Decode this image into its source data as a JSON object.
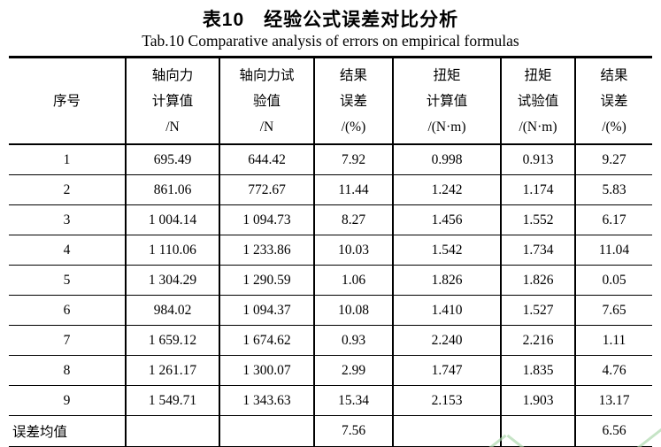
{
  "titles": {
    "cn": "表10　经验公式误差对比分析",
    "en": "Tab.10 Comparative analysis of errors on empirical formulas"
  },
  "table": {
    "headers": [
      {
        "lines": [
          "序号"
        ]
      },
      {
        "lines": [
          "轴向力",
          "计算值",
          "/N"
        ]
      },
      {
        "lines": [
          "轴向力试",
          "验值",
          "/N"
        ]
      },
      {
        "lines": [
          "结果",
          "误差",
          "/(%)"
        ]
      },
      {
        "lines": [
          "扭矩",
          "计算值",
          "/(N·m)"
        ]
      },
      {
        "lines": [
          "扭矩",
          "试验值",
          "/(N·m)"
        ]
      },
      {
        "lines": [
          "结果",
          "误差",
          "/(%)"
        ]
      }
    ],
    "rows": [
      [
        "1",
        "695.49",
        "644.42",
        "7.92",
        "0.998",
        "0.913",
        "9.27"
      ],
      [
        "2",
        "861.06",
        "772.67",
        "11.44",
        "1.242",
        "1.174",
        "5.83"
      ],
      [
        "3",
        "1 004.14",
        "1 094.73",
        "8.27",
        "1.456",
        "1.552",
        "6.17"
      ],
      [
        "4",
        "1 110.06",
        "1 233.86",
        "10.03",
        "1.542",
        "1.734",
        "11.04"
      ],
      [
        "5",
        "1 304.29",
        "1 290.59",
        "1.06",
        "1.826",
        "1.826",
        "0.05"
      ],
      [
        "6",
        "984.02",
        "1 094.37",
        "10.08",
        "1.410",
        "1.527",
        "7.65"
      ],
      [
        "7",
        "1 659.12",
        "1 674.62",
        "0.93",
        "2.240",
        "2.216",
        "1.11"
      ],
      [
        "8",
        "1 261.17",
        "1 300.07",
        "2.99",
        "1.747",
        "1.835",
        "4.76"
      ],
      [
        "9",
        "1 549.71",
        "1 343.63",
        "15.34",
        "2.153",
        "1.903",
        "13.17"
      ]
    ],
    "footer": [
      "误差均值",
      "",
      "",
      "7.56",
      "",
      "",
      "6.56"
    ]
  },
  "watermark_color": "#a8d5a8"
}
